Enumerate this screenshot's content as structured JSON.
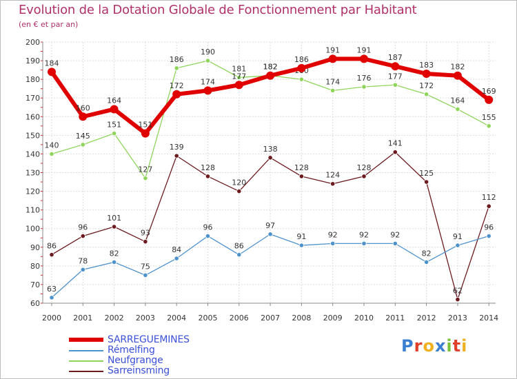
{
  "title": "Evolution de la Dotation Globale de Fonctionnement par Habitant",
  "subtitle": "(en € et par an)",
  "logo": {
    "letters": [
      "P",
      "r",
      "o",
      "x",
      "i",
      "t",
      "i"
    ],
    "colors": [
      "#3a7fd0",
      "#e0402a",
      "#f0b020",
      "#3a7fd0",
      "#7bc23a",
      "#e0402a",
      "#f0b020"
    ]
  },
  "chart_data": {
    "type": "line",
    "title": "Evolution de la Dotation Globale de Fonctionnement par Habitant",
    "ylabel": "(en € et par an)",
    "xlabel": "",
    "x": [
      "2000",
      "2001",
      "2002",
      "2003",
      "2004",
      "2005",
      "2006",
      "2007",
      "2008",
      "2009",
      "2010",
      "2011",
      "2012",
      "2013",
      "2014"
    ],
    "ylim": [
      60,
      200
    ],
    "yticks": [
      60,
      70,
      80,
      90,
      100,
      110,
      120,
      130,
      140,
      150,
      160,
      170,
      180,
      190,
      200
    ],
    "grid": true,
    "legend_position": "bottom-left",
    "series": [
      {
        "name": "Neufgrange",
        "color": "#8fd45a",
        "values": [
          140,
          145,
          151,
          127,
          186,
          190,
          181,
          182,
          180,
          174,
          176,
          177,
          172,
          164,
          155
        ]
      },
      {
        "name": "Sarreinsming",
        "color": "#6b1a1e",
        "values": [
          86,
          96,
          101,
          93,
          139,
          128,
          120,
          138,
          128,
          124,
          128,
          141,
          125,
          62,
          112
        ]
      },
      {
        "name": "Rémelfing",
        "color": "#4e92cc",
        "values": [
          63,
          78,
          82,
          75,
          84,
          96,
          86,
          97,
          91,
          92,
          92,
          92,
          82,
          91,
          96
        ]
      },
      {
        "name": "SARREGUEMINES",
        "color": "#e00000",
        "values": [
          184,
          160,
          164,
          151,
          172,
          174,
          177,
          182,
          186,
          191,
          191,
          187,
          183,
          182,
          169
        ]
      }
    ],
    "legend": [
      {
        "name": "SARREGUEMINES",
        "color": "#e00000",
        "label_color": "#3a4fd8"
      },
      {
        "name": "Rémelfing",
        "color": "#4e92cc",
        "label_color": "#3a4fd8"
      },
      {
        "name": "Neufgrange",
        "color": "#8fd45a",
        "label_color": "#3a4fd8"
      },
      {
        "name": "Sarreinsming",
        "color": "#6b1a1e",
        "label_color": "#3a4fd8"
      }
    ]
  }
}
